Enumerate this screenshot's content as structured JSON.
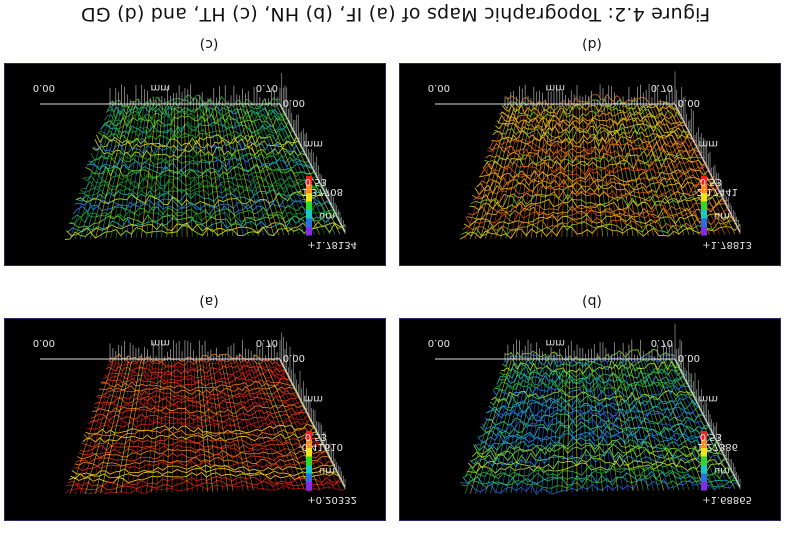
{
  "figure": {
    "caption": "Figure 4.2: Topographic Maps of (a) IF, (b) HN, (c) HT, and (d) GD"
  },
  "panels": [
    {
      "id": "c",
      "label": "(c)",
      "x_start": "0.00",
      "x_end": "0.70",
      "x_unit": "mm",
      "y_start": "0.00",
      "y_end": "0.53",
      "y_unit": "mm",
      "z_min": "-1.37708",
      "z_max": "+1.78134",
      "z_unit": "um",
      "palette": "green"
    },
    {
      "id": "d",
      "label": "(d)",
      "x_start": "0.00",
      "x_end": "0.70",
      "x_unit": "mm",
      "y_start": "0.00",
      "y_end": "0.53",
      "y_unit": "mm",
      "z_min": "-2.17441",
      "z_max": "+1.78813",
      "z_unit": "um",
      "palette": "orange"
    },
    {
      "id": "a",
      "label": "(a)",
      "x_start": "0.00",
      "x_end": "0.70",
      "x_unit": "mm",
      "y_start": "0.00",
      "y_end": "0.53",
      "y_unit": "mm",
      "z_min": "-0.41610",
      "z_max": "+0.20332",
      "z_unit": "um",
      "palette": "red"
    },
    {
      "id": "b",
      "label": "(b)",
      "x_start": "0.00",
      "x_end": "0.70",
      "x_unit": "mm",
      "y_start": "0.00",
      "y_end": "0.53",
      "y_unit": "mm",
      "z_min": "-1.27386",
      "z_max": "+1.68865",
      "z_unit": "um",
      "palette": "greenblue"
    }
  ]
}
